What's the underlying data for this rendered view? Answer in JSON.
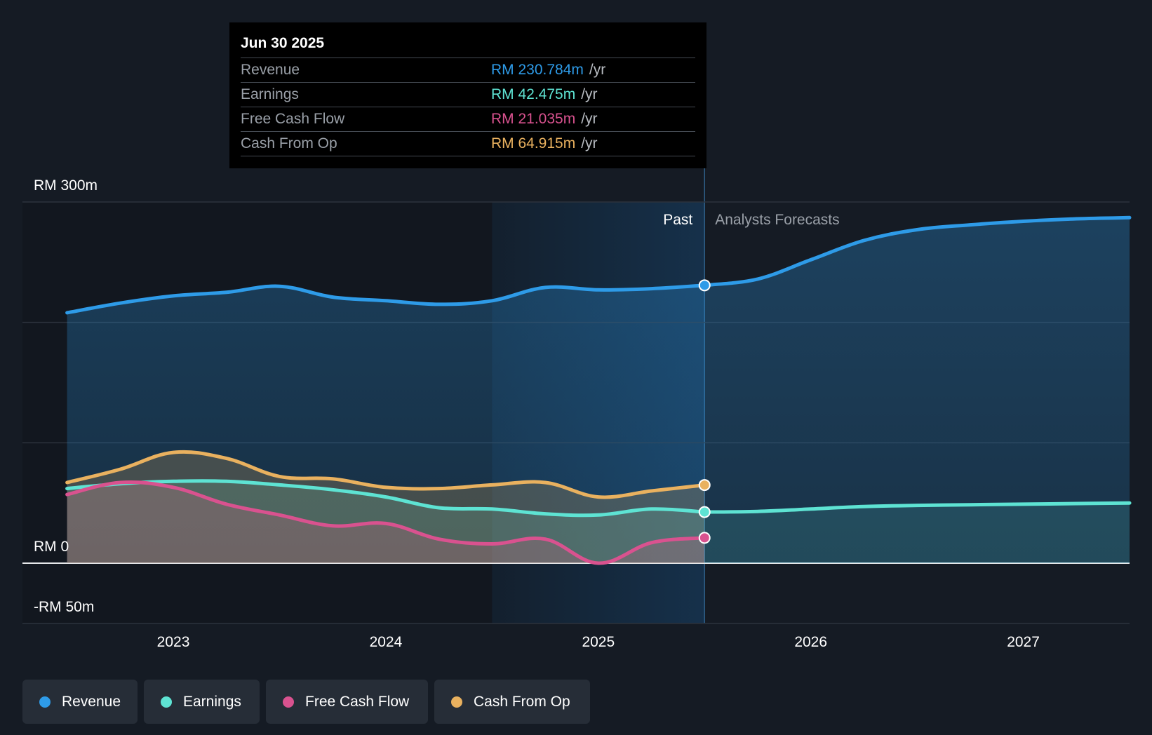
{
  "tooltip": {
    "date": "Jun 30 2025",
    "rows": [
      {
        "label": "Revenue",
        "value": "RM 230.784m",
        "unit": "/yr",
        "color": "#2e9be8"
      },
      {
        "label": "Earnings",
        "value": "RM 42.475m",
        "unit": "/yr",
        "color": "#5ee3d3"
      },
      {
        "label": "Free Cash Flow",
        "value": "RM 21.035m",
        "unit": "/yr",
        "color": "#d9528f"
      },
      {
        "label": "Cash From Op",
        "value": "RM 64.915m",
        "unit": "/yr",
        "color": "#e9b15f"
      }
    ]
  },
  "legend": [
    {
      "label": "Revenue",
      "color": "#2e9be8"
    },
    {
      "label": "Earnings",
      "color": "#5ee3d3"
    },
    {
      "label": "Free Cash Flow",
      "color": "#d9528f"
    },
    {
      "label": "Cash From Op",
      "color": "#e9b15f"
    }
  ],
  "chart_data": {
    "type": "line",
    "title": "",
    "xlabel": "",
    "ylabel": "",
    "ylim": [
      -50,
      300
    ],
    "xlim": [
      2022.5,
      2027.5
    ],
    "y_ticks": [
      {
        "value": 300,
        "label": "RM 300m"
      },
      {
        "value": 0,
        "label": "RM 0"
      },
      {
        "value": -50,
        "label": "-RM 50m"
      }
    ],
    "gridlines": [
      300,
      200,
      100,
      0,
      -50
    ],
    "x_ticks": [
      {
        "value": 2023,
        "label": "2023"
      },
      {
        "value": 2024,
        "label": "2024"
      },
      {
        "value": 2025,
        "label": "2025"
      },
      {
        "value": 2026,
        "label": "2026"
      },
      {
        "value": 2027,
        "label": "2027"
      }
    ],
    "past_label": "Past",
    "forecast_label": "Analysts Forecasts",
    "divider_x": 2025.5,
    "highlight_start": 2024.5,
    "series": [
      {
        "name": "Revenue",
        "color": "#2e9be8",
        "past": [
          [
            2022.5,
            208
          ],
          [
            2022.75,
            216
          ],
          [
            2023.0,
            222
          ],
          [
            2023.25,
            225
          ],
          [
            2023.5,
            230
          ],
          [
            2023.75,
            221
          ],
          [
            2024.0,
            218
          ],
          [
            2024.25,
            215
          ],
          [
            2024.5,
            218
          ],
          [
            2024.75,
            229
          ],
          [
            2025.0,
            227
          ],
          [
            2025.25,
            228
          ],
          [
            2025.5,
            230.784
          ]
        ],
        "forecast": [
          [
            2025.5,
            230.784
          ],
          [
            2025.75,
            236
          ],
          [
            2026.0,
            252
          ],
          [
            2026.25,
            268
          ],
          [
            2026.5,
            277
          ],
          [
            2026.75,
            281
          ],
          [
            2027.0,
            284
          ],
          [
            2027.25,
            286
          ],
          [
            2027.5,
            287
          ]
        ]
      },
      {
        "name": "Earnings",
        "color": "#5ee3d3",
        "past": [
          [
            2022.5,
            62
          ],
          [
            2022.75,
            66
          ],
          [
            2023.0,
            68
          ],
          [
            2023.25,
            68
          ],
          [
            2023.5,
            65
          ],
          [
            2023.75,
            61
          ],
          [
            2024.0,
            55
          ],
          [
            2024.25,
            46
          ],
          [
            2024.5,
            45
          ],
          [
            2024.75,
            41
          ],
          [
            2025.0,
            40
          ],
          [
            2025.25,
            45
          ],
          [
            2025.5,
            42.475
          ]
        ],
        "forecast": [
          [
            2025.5,
            42.475
          ],
          [
            2025.75,
            43
          ],
          [
            2026.0,
            45
          ],
          [
            2026.25,
            47
          ],
          [
            2026.5,
            48
          ],
          [
            2026.75,
            48.5
          ],
          [
            2027.0,
            49
          ],
          [
            2027.25,
            49.5
          ],
          [
            2027.5,
            50
          ]
        ]
      },
      {
        "name": "Free Cash Flow",
        "color": "#d9528f",
        "past": [
          [
            2022.5,
            57
          ],
          [
            2022.75,
            67
          ],
          [
            2023.0,
            63
          ],
          [
            2023.25,
            49
          ],
          [
            2023.5,
            40
          ],
          [
            2023.75,
            31
          ],
          [
            2024.0,
            33
          ],
          [
            2024.25,
            20
          ],
          [
            2024.5,
            16
          ],
          [
            2024.75,
            20
          ],
          [
            2025.0,
            0
          ],
          [
            2025.25,
            17
          ],
          [
            2025.5,
            21.035
          ]
        ],
        "forecast": []
      },
      {
        "name": "Cash From Op",
        "color": "#e9b15f",
        "past": [
          [
            2022.5,
            67
          ],
          [
            2022.75,
            78
          ],
          [
            2023.0,
            92
          ],
          [
            2023.25,
            87
          ],
          [
            2023.5,
            72
          ],
          [
            2023.75,
            70
          ],
          [
            2024.0,
            63
          ],
          [
            2024.25,
            62
          ],
          [
            2024.5,
            65
          ],
          [
            2024.75,
            67
          ],
          [
            2025.0,
            55
          ],
          [
            2025.25,
            60
          ],
          [
            2025.5,
            64.915
          ]
        ],
        "forecast": []
      }
    ]
  }
}
